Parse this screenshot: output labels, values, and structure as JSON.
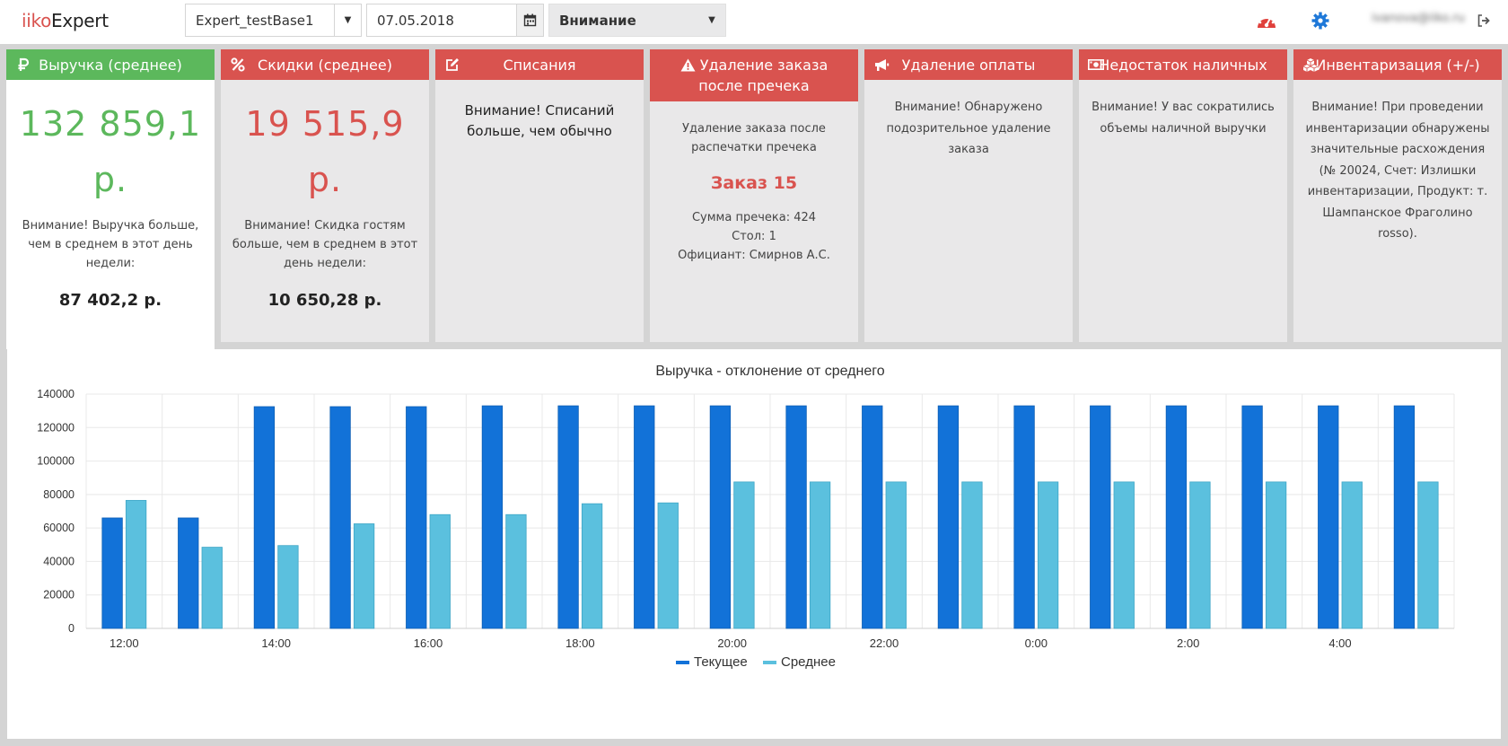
{
  "header": {
    "logo_part1": "iiko",
    "logo_part2": "Expert",
    "database": "Expert_testBase1",
    "date": "07.05.2018",
    "filter": "Внимание",
    "user_email": "ivanova@iiko.ru",
    "icons": [
      "dashboard-icon",
      "gear-icon",
      "logout-icon"
    ]
  },
  "cards": [
    {
      "title": "Выручка (среднее)",
      "icon": "ruble-icon",
      "color": "#5cb85c",
      "value": "132 859,1 р.",
      "note": "Внимание! Выручка больше, чем в среднем в этот день недели:",
      "average": "87 402,2 р."
    },
    {
      "title": "Скидки (среднее)",
      "icon": "percent-icon",
      "color": "#d9534f",
      "value": "19 515,9 р.",
      "note": "Внимание! Скидка гостям больше, чем в среднем в этот день недели:",
      "average": "10 650,28 р."
    },
    {
      "title": "Списания",
      "icon": "edit-icon",
      "color": "#d9534f",
      "text": "Внимание! Списаний больше, чем обычно"
    },
    {
      "title": "Удаление заказа после пречека",
      "icon": "warning-icon",
      "color": "#d9534f",
      "desc": "Удаление заказа после распечатки пречека",
      "order": "Заказ 15",
      "sum": "Сумма пречека: 424",
      "table": "Стол: 1",
      "waiter": "Официант: Смирнов А.С."
    },
    {
      "title": "Удаление оплаты",
      "icon": "megaphone-icon",
      "color": "#d9534f",
      "text": "Внимание! Обнаружено подозрительное удаление заказа"
    },
    {
      "title": "Недостаток наличных",
      "icon": "money-icon",
      "color": "#d9534f",
      "text": "Внимание! У вас сократились объемы наличной выручки"
    },
    {
      "title": "Инвентаризация (+/-)",
      "icon": "cubes-icon",
      "color": "#d9534f",
      "text": "Внимание! При проведении инвентаризации обнаружены значительные расхождения (№ 20024, Счет: Излишки инвентаризации, Продукт: т. Шампанское Фраголино rosso)."
    }
  ],
  "chart_data": {
    "type": "bar",
    "title": "Выручка - отклонение от среднего",
    "categories": [
      "12:00",
      "13:00",
      "14:00",
      "15:00",
      "16:00",
      "17:00",
      "18:00",
      "19:00",
      "20:00",
      "21:00",
      "22:00",
      "23:00",
      "0:00",
      "1:00",
      "2:00",
      "3:00",
      "4:00",
      "5:00"
    ],
    "tick_labels": [
      "12:00",
      "",
      "14:00",
      "",
      "16:00",
      "",
      "18:00",
      "",
      "20:00",
      "",
      "22:00",
      "",
      "0:00",
      "",
      "2:00",
      "",
      "4:00",
      ""
    ],
    "series": [
      {
        "name": "Текущее",
        "color": "#1272d8",
        "values": [
          66000,
          66000,
          132500,
          132500,
          132500,
          133000,
          133000,
          133000,
          133000,
          133000,
          133000,
          133000,
          133000,
          133000,
          133000,
          133000,
          133000,
          133000
        ]
      },
      {
        "name": "Среднее",
        "color": "#5bc0de",
        "values": [
          76500,
          48500,
          49500,
          62500,
          68000,
          68000,
          74500,
          75000,
          87500,
          87500,
          87500,
          87500,
          87500,
          87500,
          87500,
          87500,
          87500,
          87500
        ]
      }
    ],
    "ylim": [
      0,
      140000
    ],
    "yticks": [
      0,
      20000,
      40000,
      60000,
      80000,
      100000,
      120000,
      140000
    ],
    "legend": "bottom",
    "grid": true
  }
}
